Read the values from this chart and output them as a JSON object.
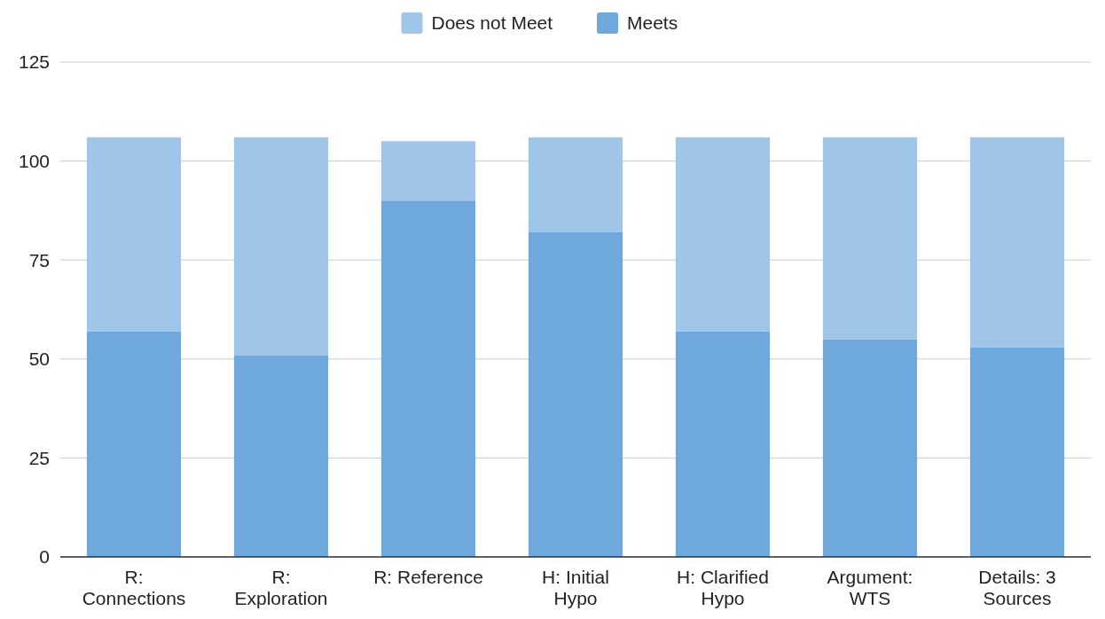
{
  "chart_data": {
    "type": "bar",
    "stacked": true,
    "categories": [
      "R: Connections",
      "R: Exploration",
      "R: Reference",
      "H: Initial Hypo",
      "H: Clarified Hypo",
      "Argument: WTS",
      "Details: 3 Sources"
    ],
    "series": [
      {
        "name": "Meets",
        "color": "#6fa8dc",
        "values": [
          57,
          51,
          90,
          82,
          57,
          55,
          53
        ]
      },
      {
        "name": "Does not Meet",
        "color": "#9fc5e8",
        "values": [
          49,
          55,
          15,
          24,
          49,
          51,
          53
        ]
      }
    ],
    "ylim": [
      0,
      125
    ],
    "yticks": [
      0,
      25,
      50,
      75,
      100,
      125
    ],
    "grid": "y",
    "legend": "top"
  }
}
